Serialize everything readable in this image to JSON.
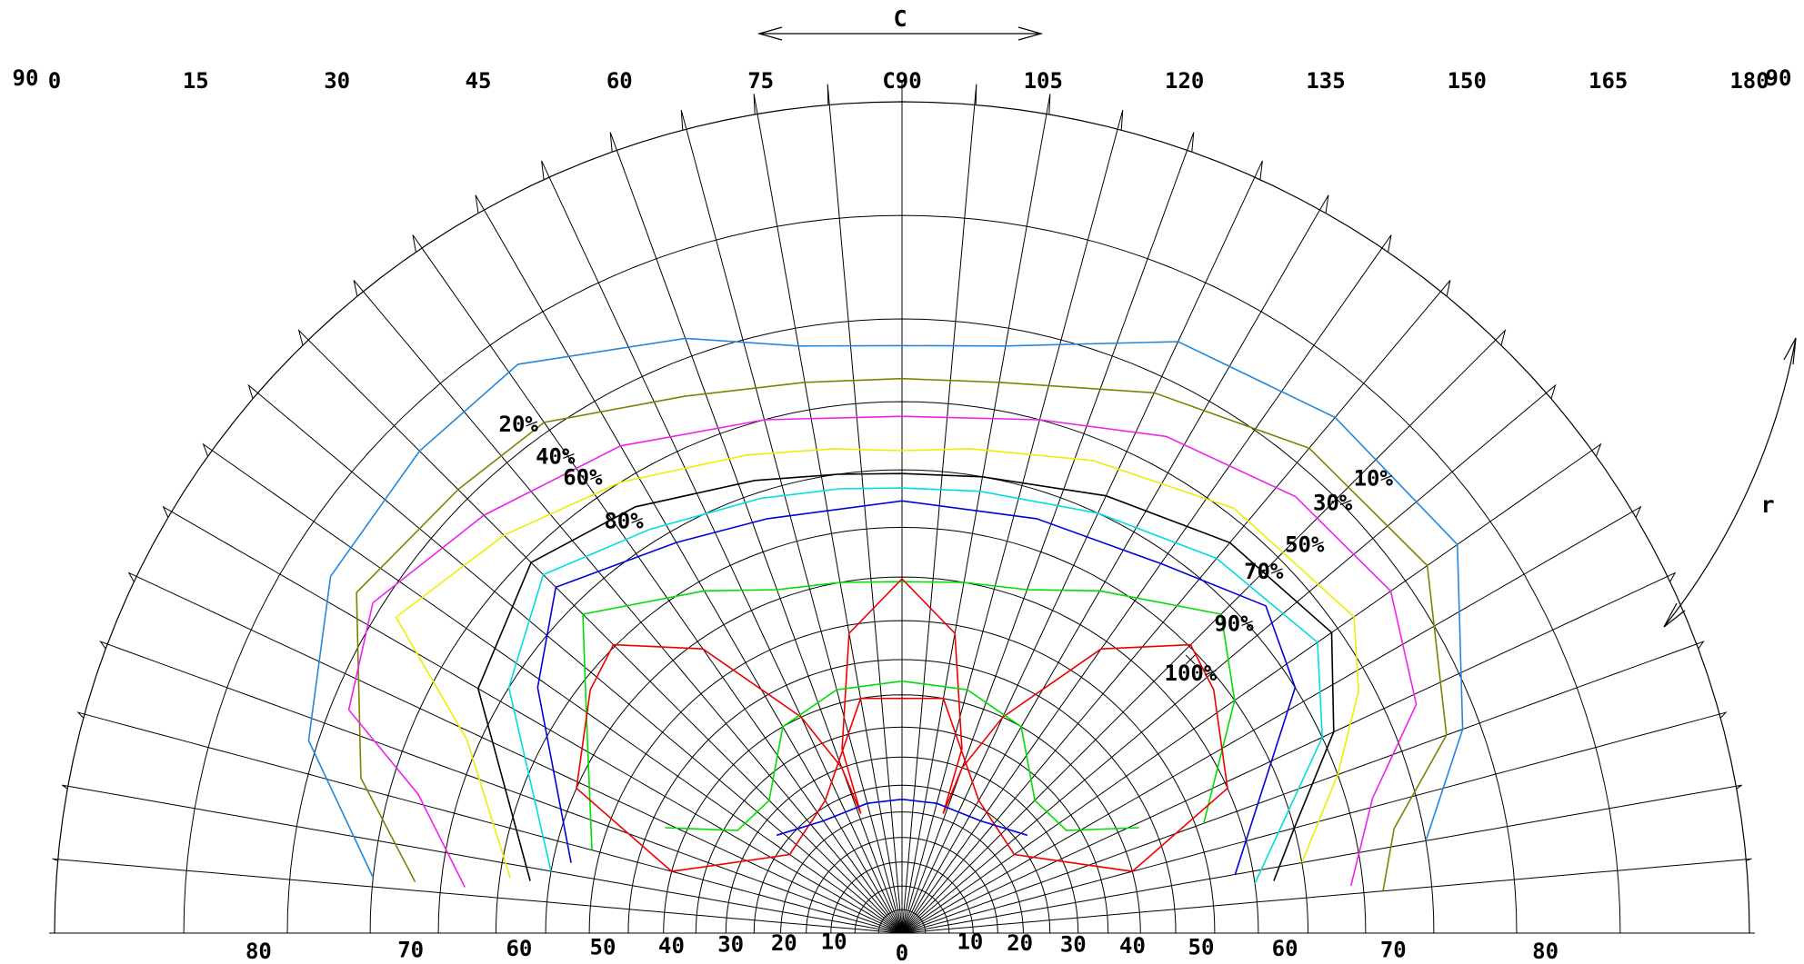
{
  "chart_data": {
    "type": "isolux-polar-diagram",
    "axis_c": {
      "label": "C",
      "range": [
        0,
        180
      ],
      "tick_labels": [
        "0",
        "15",
        "30",
        "45",
        "60",
        "75",
        "C90",
        "105",
        "120",
        "135",
        "150",
        "165",
        "180"
      ]
    },
    "axis_r": {
      "label": "r",
      "range": [
        0,
        90
      ],
      "tick_labels": [
        "0",
        "10",
        "20",
        "30",
        "40",
        "50",
        "60",
        "70",
        "80",
        "90"
      ]
    },
    "grid": true,
    "contours": [
      {
        "name": "10%",
        "color": "#2288dd",
        "points": [
          [
            6,
            75
          ],
          [
            18,
            80.5
          ],
          [
            32,
            83
          ],
          [
            45,
            83.4
          ],
          [
            56,
            83.6
          ],
          [
            70,
            81
          ],
          [
            80,
            79
          ],
          [
            90,
            78.5
          ],
          [
            100,
            79
          ],
          [
            115,
            82
          ],
          [
            130,
            83
          ],
          [
            145,
            83.2
          ],
          [
            160,
            79
          ],
          [
            170,
            75
          ]
        ]
      },
      {
        "name": "20%",
        "color": "#808000",
        "points": [
          [
            6,
            72
          ],
          [
            16,
            77
          ],
          [
            32,
            81.5
          ],
          [
            45,
            80.7
          ],
          [
            55,
            80.5
          ],
          [
            68,
            78
          ],
          [
            80,
            76.8
          ],
          [
            90,
            76.5
          ],
          [
            100,
            76.8
          ],
          [
            115,
            79
          ],
          [
            130,
            81
          ],
          [
            145,
            81.4
          ],
          [
            160,
            78
          ],
          [
            168,
            73
          ],
          [
            175,
            71.5
          ]
        ]
      },
      {
        "name": "30%",
        "color": "#ee22ee",
        "points": [
          [
            6,
            68
          ],
          [
            16,
            73
          ],
          [
            22,
            79
          ],
          [
            32,
            80.5
          ],
          [
            45,
            78.7
          ],
          [
            60,
            77
          ],
          [
            75,
            75
          ],
          [
            90,
            74
          ],
          [
            105,
            75
          ],
          [
            118,
            77
          ],
          [
            132,
            78.5
          ],
          [
            145,
            79
          ],
          [
            156,
            77
          ],
          [
            164,
            72
          ],
          [
            174,
            69
          ]
        ]
      },
      {
        "name": "40%",
        "color": "#eeee00",
        "points": [
          [
            8,
            64
          ],
          [
            24,
            71
          ],
          [
            32,
            79
          ],
          [
            45,
            77
          ],
          [
            58,
            75
          ],
          [
            72,
            73
          ],
          [
            82,
            72
          ],
          [
            90,
            71.5
          ],
          [
            98,
            72
          ],
          [
            112,
            73.5
          ],
          [
            128,
            75.5
          ],
          [
            145,
            76.3
          ],
          [
            152,
            74
          ],
          [
            160,
            70
          ],
          [
            170,
            65
          ]
        ]
      },
      {
        "name": "50%",
        "color": "#000000",
        "points": [
          [
            8,
            62
          ],
          [
            30,
            72
          ],
          [
            45,
            74.5
          ],
          [
            58,
            73
          ],
          [
            72,
            71
          ],
          [
            82,
            70
          ],
          [
            90,
            69.7
          ],
          [
            100,
            70
          ],
          [
            115,
            71.5
          ],
          [
            130,
            73.5
          ],
          [
            145,
            74.5
          ],
          [
            155,
            71
          ],
          [
            165,
            65
          ],
          [
            172,
            62
          ]
        ]
      },
      {
        "name": "60%",
        "color": "#00dddd",
        "points": [
          [
            10,
            60
          ],
          [
            32,
            70
          ],
          [
            45,
            73.3
          ],
          [
            58,
            71
          ],
          [
            72,
            69.5
          ],
          [
            82,
            68.8
          ],
          [
            90,
            68.5
          ],
          [
            100,
            68.8
          ],
          [
            115,
            70
          ],
          [
            130,
            72
          ],
          [
            145,
            73.3
          ],
          [
            155,
            70
          ],
          [
            172,
            60
          ]
        ]
      },
      {
        "name": "70%",
        "color": "#0000dd",
        "points": [
          [
            12,
            58
          ],
          [
            34,
            68
          ],
          [
            45,
            72
          ],
          [
            60,
            69
          ],
          [
            72,
            67.7
          ],
          [
            90,
            67.4
          ],
          [
            108,
            67.7
          ],
          [
            125,
            69
          ],
          [
            138,
            72
          ],
          [
            148,
            70
          ],
          [
            170,
            58
          ]
        ]
      },
      {
        "name": "80%",
        "color": "#00dd00",
        "points": [
          [
            15,
            56
          ],
          [
            35,
            63
          ],
          [
            45,
            69
          ],
          [
            60,
            64
          ],
          [
            70,
            61
          ],
          [
            80,
            60
          ],
          [
            90,
            59.5
          ],
          [
            100,
            60
          ],
          [
            110,
            61
          ],
          [
            120,
            64
          ],
          [
            135,
            69
          ],
          [
            145,
            65
          ],
          [
            160,
            56
          ]
        ]
      },
      {
        "name": "90%",
        "color": "#ee0000",
        "points": [
          [
            24,
            60
          ],
          [
            38,
            64
          ],
          [
            45,
            65.2
          ],
          [
            55,
            59
          ],
          [
            65,
            45
          ],
          [
            70,
            35
          ],
          [
            71,
            26
          ],
          [
            72,
            38
          ],
          [
            80,
            54
          ],
          [
            90,
            59.8
          ],
          [
            100,
            54
          ],
          [
            108,
            38
          ],
          [
            109,
            26
          ],
          [
            110,
            35
          ],
          [
            115,
            45
          ],
          [
            125,
            59
          ],
          [
            135,
            65.2
          ],
          [
            142,
            64
          ],
          [
            156,
            60
          ],
          [
            165,
            45
          ],
          [
            145,
            28
          ],
          [
            120,
            31
          ],
          [
            100,
            45
          ],
          [
            80,
            45
          ],
          [
            60,
            31
          ],
          [
            35,
            28
          ],
          [
            15,
            45
          ],
          [
            24,
            60
          ]
        ]
      },
      {
        "name": "",
        "color": "#00dd00",
        "points": [
          [
            24,
            48
          ],
          [
            32,
            38
          ],
          [
            45,
            37
          ],
          [
            60,
            45
          ],
          [
            75,
            47
          ],
          [
            90,
            47
          ],
          [
            105,
            47
          ],
          [
            120,
            45
          ],
          [
            135,
            37
          ],
          [
            148,
            38
          ],
          [
            156,
            48
          ]
        ]
      },
      {
        "name": "",
        "color": "#0000dd",
        "points": [
          [
            38,
            32
          ],
          [
            55,
            28
          ],
          [
            75,
            27.5
          ],
          [
            90,
            27.4
          ],
          [
            105,
            27.5
          ],
          [
            125,
            28
          ],
          [
            142,
            32
          ]
        ]
      }
    ],
    "labels": [
      {
        "text": "10%",
        "c": 136,
        "r": 82.1
      },
      {
        "text": "20%",
        "c": 53,
        "r": 81.2
      },
      {
        "text": "30%",
        "c": 135,
        "r": 79.7
      },
      {
        "text": "40%",
        "c": 54,
        "r": 78.6
      },
      {
        "text": "50%",
        "c": 136,
        "r": 76.8
      },
      {
        "text": "60%",
        "c": 55,
        "r": 76.6
      },
      {
        "text": "70%",
        "c": 135,
        "r": 73.6
      },
      {
        "text": "80%",
        "c": 56,
        "r": 72.6
      },
      {
        "text": "90%",
        "c": 137,
        "r": 69.2
      },
      {
        "text": "100%",
        "c": 138,
        "r": 63.3
      }
    ]
  }
}
